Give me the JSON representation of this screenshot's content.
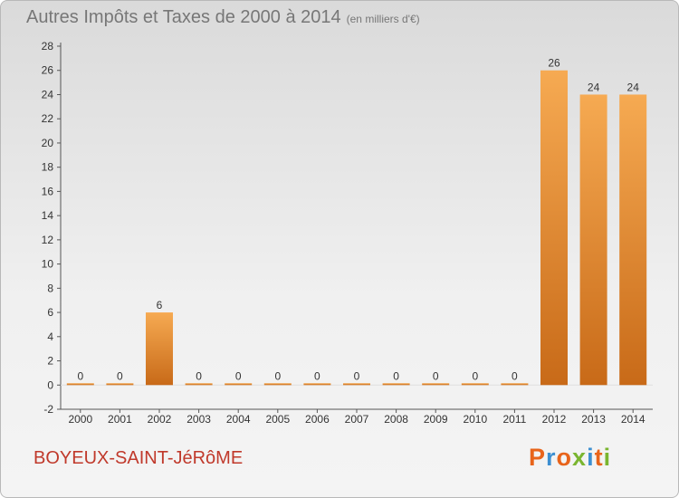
{
  "header": {
    "title": "Autres Impôts et Taxes de 2000 à 2014",
    "subtitle": "(en milliers d'€)"
  },
  "footer": {
    "commune": "BOYEUX-SAINT-JéRôME",
    "logo": "Proxiti",
    "logo_colors": [
      "#e8641b",
      "#3d8fd1",
      "#e8641b",
      "#7ab530",
      "#3d8fd1",
      "#e8641b",
      "#7ab530"
    ]
  },
  "colors": {
    "bar_light": "#f6aa52",
    "bar_dark": "#c86a18",
    "axis": "#555555",
    "grid_tick": "#888888"
  },
  "chart_data": {
    "type": "bar",
    "categories": [
      "2000",
      "2001",
      "2002",
      "2003",
      "2004",
      "2005",
      "2006",
      "2007",
      "2008",
      "2009",
      "2010",
      "2011",
      "2012",
      "2013",
      "2014"
    ],
    "values": [
      0,
      0,
      6,
      0,
      0,
      0,
      0,
      0,
      0,
      0,
      0,
      0,
      26,
      24,
      24
    ],
    "value_labels": [
      "0",
      "0",
      "6",
      "0",
      "0",
      "0",
      "0",
      "0",
      "0",
      "0",
      "0",
      "0",
      "26",
      "24",
      "24"
    ],
    "yticks": [
      "-2",
      "0",
      "2",
      "4",
      "6",
      "8",
      "10",
      "12",
      "14",
      "16",
      "18",
      "20",
      "22",
      "24",
      "26",
      "28"
    ],
    "ylim": [
      -2,
      28
    ],
    "xlabel": "",
    "ylabel": "",
    "grid": false
  }
}
